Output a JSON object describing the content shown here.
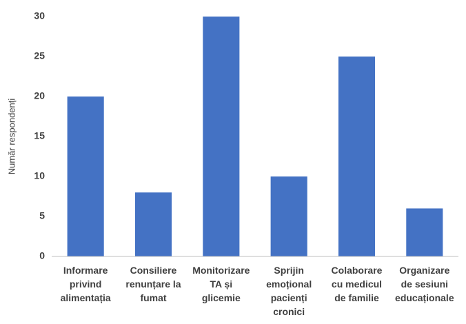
{
  "chart_data": {
    "type": "bar",
    "y_label": "Număr respondenți",
    "categories": [
      "Informare\nprivind\nalimentația",
      "Consiliere\nrenunțare la\nfumat",
      "Monitorizare\nTA și\nglicemie",
      "Sprijin\nemoțional\npacienți\ncronici",
      "Colaborare\ncu medicul\nde familie",
      "Organizare\nde sesiuni\neducaționale"
    ],
    "values": [
      20,
      8,
      30,
      10,
      25,
      6
    ],
    "color": "#4472c4",
    "ylim": [
      0,
      30
    ],
    "yticks": [
      0,
      5,
      10,
      15,
      20,
      25,
      30
    ],
    "grid": false
  }
}
